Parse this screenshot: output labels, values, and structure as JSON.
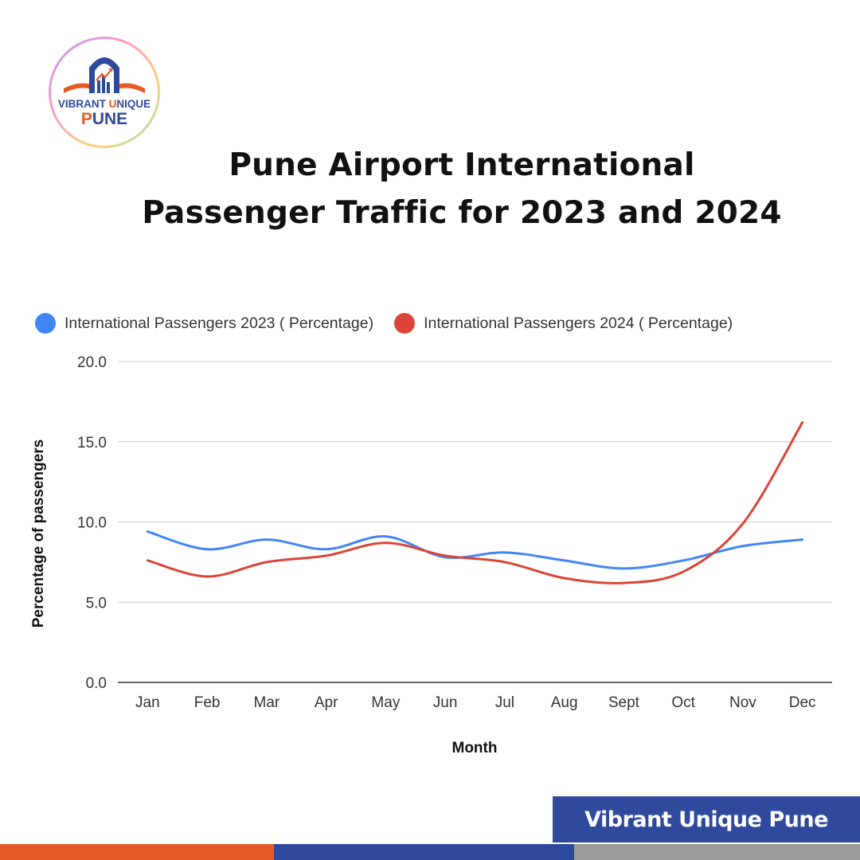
{
  "colors": {
    "series_2023": "#4285f4",
    "series_2024": "#db4437",
    "brand_blue": "#2f4a9c",
    "brand_orange": "#e65a25",
    "stripe_gray": "#9a9a9a",
    "grid": "#cccccc"
  },
  "logo": {
    "line1_part1": "VIBRANT ",
    "line1_highlight": "U",
    "line1_part2": "NIQUE",
    "line2_highlight": "P",
    "line2_rest": "UNE"
  },
  "title": {
    "line1": "Pune Airport International",
    "line2": "Passenger Traffic for 2023 and 2024"
  },
  "chart_data": {
    "type": "line",
    "categories": [
      "Jan",
      "Feb",
      "Mar",
      "Apr",
      "May",
      "Jun",
      "Jul",
      "Aug",
      "Sept",
      "Oct",
      "Nov",
      "Dec"
    ],
    "series": [
      {
        "name": "International Passengers 2023 ( Percentage)",
        "color": "#4285f4",
        "values": [
          9.4,
          8.3,
          8.9,
          8.3,
          9.1,
          7.8,
          8.1,
          7.6,
          7.1,
          7.6,
          8.5,
          8.9
        ]
      },
      {
        "name": "International Passengers 2024 ( Percentage)",
        "color": "#db4437",
        "values": [
          7.6,
          6.6,
          7.5,
          7.9,
          8.7,
          7.9,
          7.5,
          6.5,
          6.2,
          6.9,
          9.9,
          16.2
        ]
      }
    ],
    "xlabel": "Month",
    "ylabel": "Percentage of passengers",
    "yticks": [
      "0.0",
      "5.0",
      "10.0",
      "15.0",
      "20.0"
    ],
    "ylim": [
      0,
      20
    ],
    "grid": true,
    "legend_position": "top",
    "smooth": true
  },
  "banner": {
    "text": "Vibrant Unique Pune"
  }
}
